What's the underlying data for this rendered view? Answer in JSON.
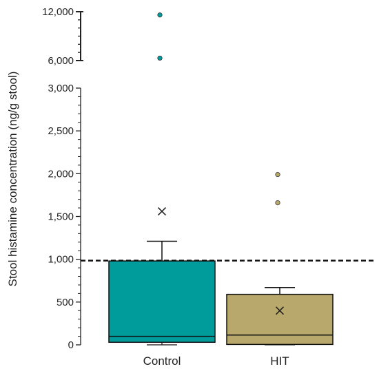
{
  "chart_data": {
    "type": "box",
    "ylabel": "Stool histamine concentration (ng/g stool)",
    "categories": [
      "Control",
      "HIT"
    ],
    "y_axis_broken": true,
    "y_lower_range": [
      0,
      3000
    ],
    "y_lower_ticks": [
      0,
      500,
      1000,
      1500,
      2000,
      2500,
      3000
    ],
    "y_lower_tick_labels": [
      "0",
      "500",
      "1,000",
      "1,500",
      "2,000",
      "2,500",
      "3,000"
    ],
    "y_upper_range": [
      6000,
      12000
    ],
    "y_upper_ticks": [
      6000,
      12000
    ],
    "y_upper_tick_labels": [
      "6,000",
      "12,000"
    ],
    "reference_line": {
      "value": 1000,
      "style": "dashed"
    },
    "series": [
      {
        "category": "Control",
        "color": "#009b9b",
        "min": 0,
        "q1": 30,
        "median": 100,
        "q3": 980,
        "whisker_high": 1210,
        "mean": 1560,
        "outliers": [
          6300,
          11600
        ]
      },
      {
        "category": "HIT",
        "color": "#b9a86c",
        "min": 0,
        "q1": 5,
        "median": 115,
        "q3": 590,
        "whisker_high": 670,
        "mean": 400,
        "outliers": [
          1660,
          1990
        ]
      }
    ]
  }
}
